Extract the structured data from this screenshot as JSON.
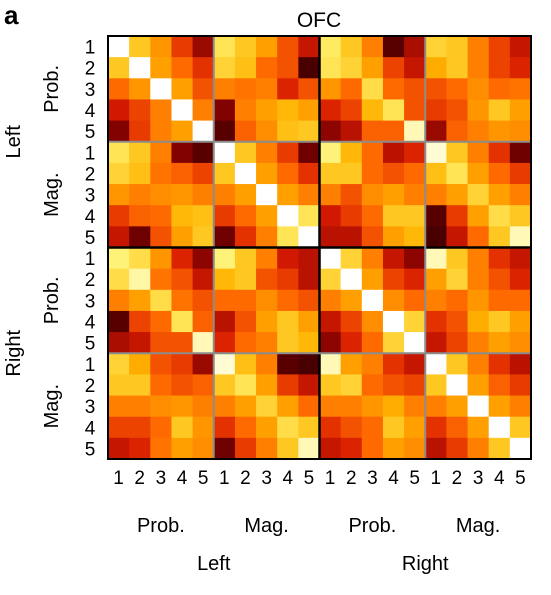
{
  "panel_label": "a",
  "chart_data": {
    "type": "heatmap",
    "title": "OFC",
    "tick_labels": [
      "1",
      "2",
      "3",
      "4",
      "5"
    ],
    "groups": [
      "Prob.",
      "Mag.",
      "Prob.",
      "Mag."
    ],
    "super_groups": [
      "Left",
      "Right"
    ],
    "colormap": [
      "#000000",
      "#7a0000",
      "#d81b00",
      "#ff6a00",
      "#ffb300",
      "#fff06a",
      "#ffffff"
    ],
    "value_range": [
      0,
      1
    ],
    "values": [
      [
        1.0,
        0.72,
        0.6,
        0.4,
        0.22,
        0.8,
        0.72,
        0.62,
        0.45,
        0.3,
        0.82,
        0.72,
        0.55,
        0.12,
        0.25,
        0.75,
        0.72,
        0.55,
        0.42,
        0.3
      ],
      [
        0.72,
        1.0,
        0.62,
        0.5,
        0.38,
        0.75,
        0.7,
        0.5,
        0.45,
        0.1,
        0.8,
        0.75,
        0.62,
        0.42,
        0.3,
        0.65,
        0.72,
        0.55,
        0.42,
        0.35
      ],
      [
        0.5,
        0.6,
        1.0,
        0.62,
        0.45,
        0.55,
        0.52,
        0.55,
        0.35,
        0.45,
        0.6,
        0.5,
        0.78,
        0.5,
        0.45,
        0.45,
        0.5,
        0.58,
        0.5,
        0.52
      ],
      [
        0.32,
        0.42,
        0.55,
        1.0,
        0.55,
        0.18,
        0.55,
        0.62,
        0.68,
        0.62,
        0.35,
        0.42,
        0.68,
        0.8,
        0.45,
        0.4,
        0.45,
        0.6,
        0.72,
        0.62
      ],
      [
        0.18,
        0.4,
        0.55,
        0.62,
        1.0,
        0.12,
        0.48,
        0.58,
        0.7,
        0.72,
        0.2,
        0.28,
        0.48,
        0.48,
        0.92,
        0.22,
        0.48,
        0.55,
        0.6,
        0.58
      ],
      [
        0.8,
        0.72,
        0.55,
        0.18,
        0.12,
        1.0,
        0.72,
        0.55,
        0.4,
        0.15,
        0.85,
        0.68,
        0.5,
        0.28,
        0.35,
        0.95,
        0.72,
        0.55,
        0.38,
        0.15
      ],
      [
        0.75,
        0.7,
        0.52,
        0.48,
        0.42,
        0.72,
        1.0,
        0.62,
        0.5,
        0.38,
        0.72,
        0.72,
        0.5,
        0.45,
        0.5,
        0.7,
        0.8,
        0.62,
        0.5,
        0.4
      ],
      [
        0.6,
        0.55,
        0.58,
        0.6,
        0.55,
        0.55,
        0.62,
        1.0,
        0.62,
        0.55,
        0.55,
        0.45,
        0.58,
        0.62,
        0.55,
        0.55,
        0.62,
        0.75,
        0.62,
        0.55
      ],
      [
        0.4,
        0.48,
        0.5,
        0.68,
        0.7,
        0.4,
        0.5,
        0.62,
        1.0,
        0.8,
        0.32,
        0.4,
        0.5,
        0.72,
        0.72,
        0.12,
        0.4,
        0.62,
        0.78,
        0.72
      ],
      [
        0.3,
        0.15,
        0.45,
        0.62,
        0.72,
        0.15,
        0.38,
        0.55,
        0.8,
        1.0,
        0.28,
        0.28,
        0.45,
        0.62,
        0.68,
        0.1,
        0.3,
        0.5,
        0.72,
        0.92
      ],
      [
        0.85,
        0.78,
        0.6,
        0.35,
        0.2,
        0.85,
        0.72,
        0.55,
        0.32,
        0.28,
        1.0,
        0.75,
        0.55,
        0.3,
        0.2,
        0.92,
        0.72,
        0.55,
        0.38,
        0.3
      ],
      [
        0.78,
        0.9,
        0.52,
        0.45,
        0.3,
        0.68,
        0.72,
        0.45,
        0.4,
        0.28,
        0.75,
        1.0,
        0.62,
        0.42,
        0.35,
        0.62,
        0.75,
        0.55,
        0.45,
        0.35
      ],
      [
        0.55,
        0.62,
        0.78,
        0.52,
        0.45,
        0.5,
        0.5,
        0.58,
        0.5,
        0.45,
        0.55,
        0.62,
        1.0,
        0.58,
        0.5,
        0.55,
        0.5,
        0.6,
        0.5,
        0.5
      ],
      [
        0.12,
        0.42,
        0.5,
        0.8,
        0.48,
        0.28,
        0.45,
        0.62,
        0.72,
        0.62,
        0.3,
        0.42,
        0.58,
        1.0,
        0.75,
        0.38,
        0.45,
        0.65,
        0.72,
        0.62
      ],
      [
        0.25,
        0.3,
        0.45,
        0.45,
        0.92,
        0.35,
        0.5,
        0.55,
        0.72,
        0.68,
        0.2,
        0.35,
        0.5,
        0.75,
        1.0,
        0.3,
        0.42,
        0.55,
        0.62,
        0.58
      ],
      [
        0.75,
        0.65,
        0.45,
        0.4,
        0.22,
        0.95,
        0.7,
        0.55,
        0.12,
        0.1,
        0.92,
        0.62,
        0.55,
        0.38,
        0.3,
        1.0,
        0.72,
        0.55,
        0.38,
        0.28
      ],
      [
        0.72,
        0.72,
        0.5,
        0.45,
        0.48,
        0.72,
        0.8,
        0.62,
        0.4,
        0.3,
        0.72,
        0.75,
        0.5,
        0.45,
        0.42,
        0.72,
        1.0,
        0.62,
        0.48,
        0.4
      ],
      [
        0.55,
        0.55,
        0.58,
        0.6,
        0.55,
        0.55,
        0.62,
        0.75,
        0.62,
        0.5,
        0.55,
        0.55,
        0.6,
        0.65,
        0.55,
        0.55,
        0.62,
        1.0,
        0.62,
        0.55
      ],
      [
        0.42,
        0.42,
        0.5,
        0.72,
        0.6,
        0.38,
        0.5,
        0.62,
        0.78,
        0.72,
        0.38,
        0.45,
        0.5,
        0.72,
        0.62,
        0.38,
        0.48,
        0.62,
        1.0,
        0.72
      ],
      [
        0.3,
        0.35,
        0.52,
        0.62,
        0.58,
        0.15,
        0.4,
        0.55,
        0.72,
        0.92,
        0.3,
        0.35,
        0.5,
        0.62,
        0.58,
        0.28,
        0.4,
        0.55,
        0.72,
        1.0
      ]
    ]
  }
}
